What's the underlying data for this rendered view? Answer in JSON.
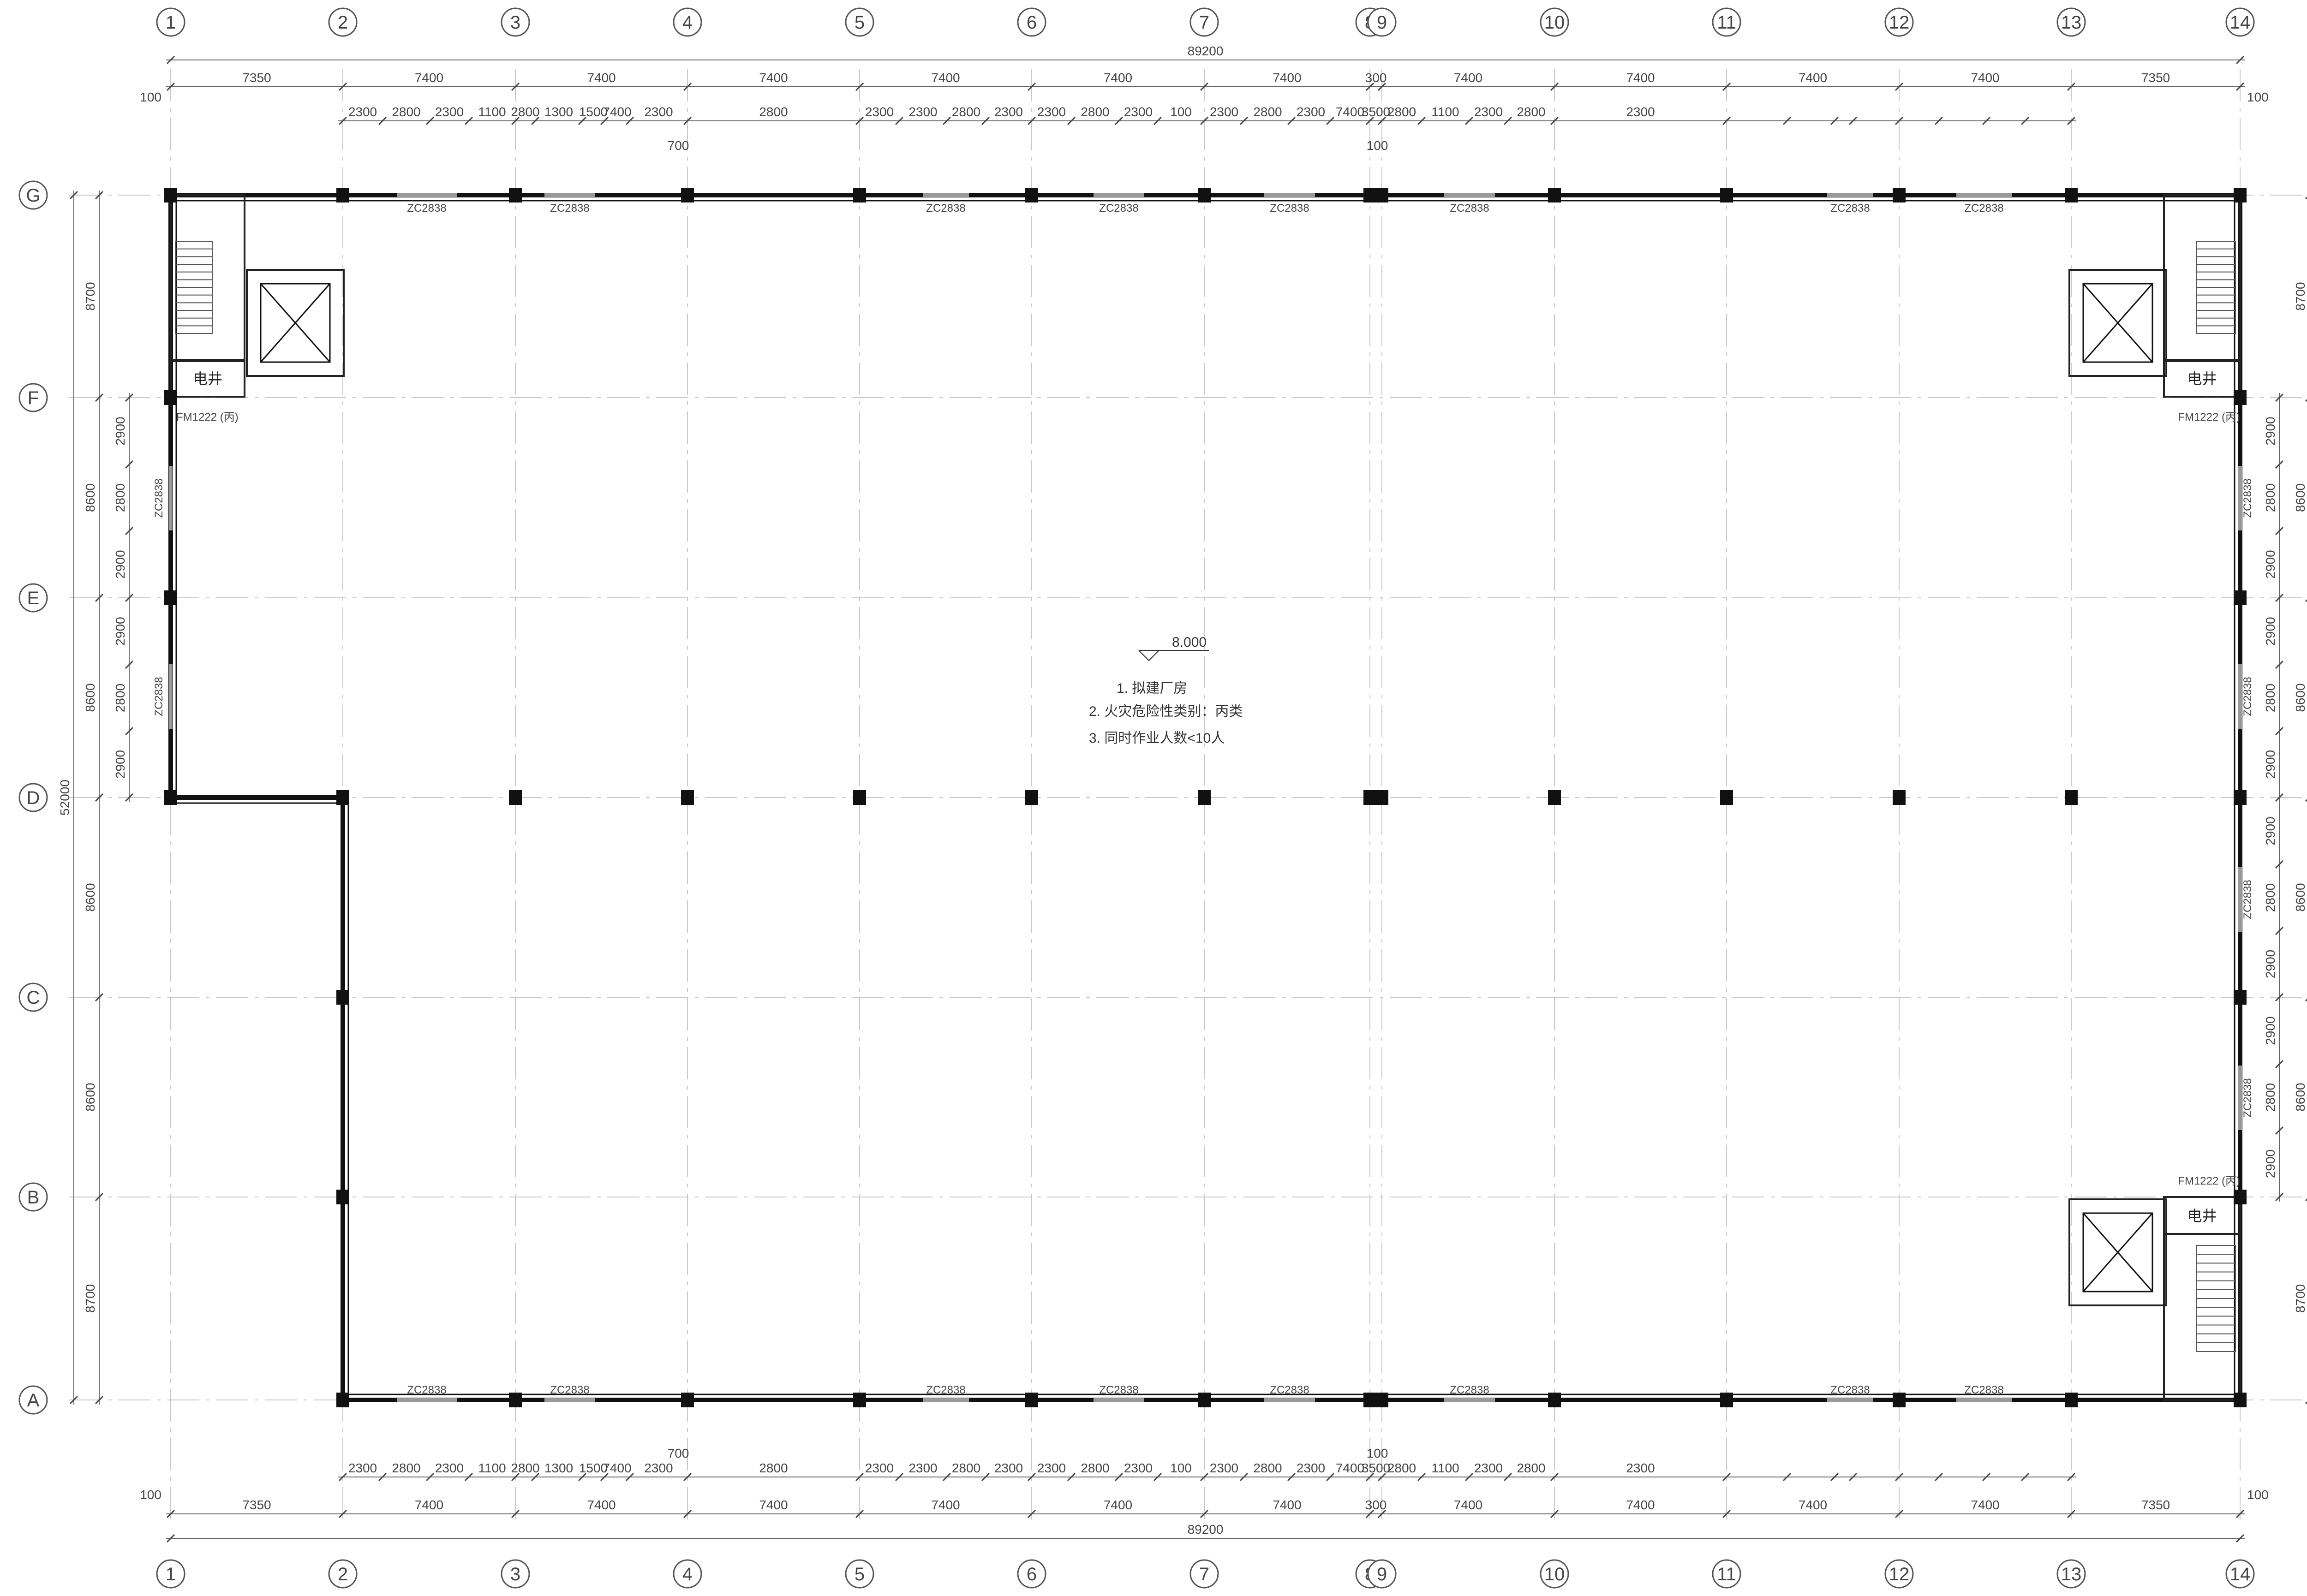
{
  "axes": {
    "columns": [
      "1",
      "2",
      "3",
      "4",
      "5",
      "6",
      "7",
      "8",
      "9",
      "10",
      "11",
      "12",
      "13",
      "14"
    ],
    "rows": [
      "G",
      "F",
      "E",
      "D",
      "C",
      "B",
      "A"
    ]
  },
  "dims": {
    "total_width": "89200",
    "total_depth": "52000",
    "bays": [
      "7350",
      "7400",
      "7400",
      "7400",
      "7400",
      "7400",
      "7400",
      "300",
      "7400",
      "7400",
      "7400",
      "7400",
      "7350"
    ],
    "edge_offset": "100",
    "subdivisions_top": [
      "2300",
      "2800",
      "2300",
      "1100",
      "2800",
      "1300",
      "1500",
      "7400",
      "2300",
      "2800",
      "2300",
      "2300",
      "2800",
      "2300",
      "2300",
      "2800",
      "2300",
      "100",
      "2300",
      "2800",
      "2300",
      "7400",
      "3500",
      "2800",
      "1100",
      "2300",
      "2800",
      "2300"
    ],
    "sub_note_700": "700",
    "sub_note_100": "100",
    "row_spans": [
      "8700",
      "8600",
      "8600",
      "8600",
      "8600",
      "8700"
    ],
    "row_subs": [
      "2900",
      "2800",
      "2900"
    ]
  },
  "labels": {
    "window": "ZC2838",
    "elec_shaft": "电井",
    "fire_door": "FM1222 (丙)",
    "elevation": "8.000",
    "notes": [
      "1. 拟建厂房",
      "2. 火灾危险性类别：丙类",
      "3. 同时作业人数<10人"
    ]
  }
}
